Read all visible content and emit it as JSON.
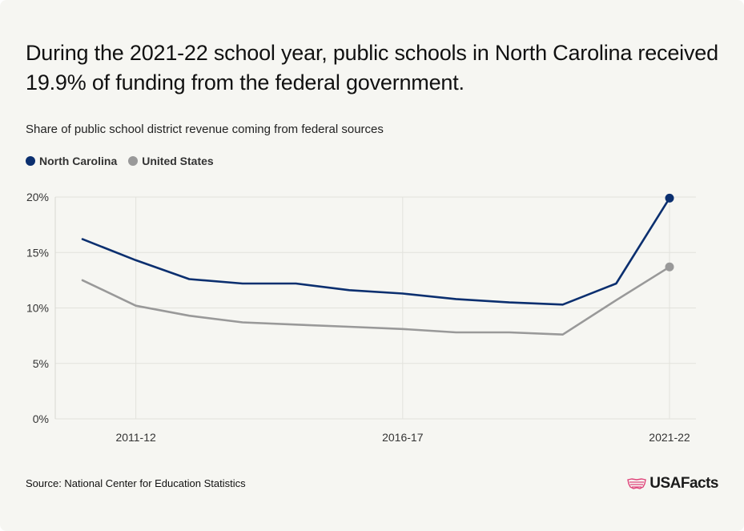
{
  "title": "During the 2021-22 school year, public schools in North Carolina received 19.9% of funding from the federal government.",
  "subtitle": "Share of public school district revenue coming from federal sources",
  "legend": [
    {
      "name": "North Carolina",
      "color": "#0b2f6f"
    },
    {
      "name": "United States",
      "color": "#999999"
    }
  ],
  "source": "Source: National Center for Education Statistics",
  "brand": {
    "name": "USAFacts",
    "icon": "us-flag-map-icon",
    "color": "#e0457b"
  },
  "chart_data": {
    "type": "line",
    "x": [
      "2010-11",
      "2011-12",
      "2012-13",
      "2013-14",
      "2014-15",
      "2015-16",
      "2016-17",
      "2017-18",
      "2018-19",
      "2019-20",
      "2020-21",
      "2021-22"
    ],
    "x_tick_labels": [
      "2011-12",
      "2016-17",
      "2021-22"
    ],
    "y_tick_labels": [
      "0%",
      "5%",
      "10%",
      "15%",
      "20%"
    ],
    "y_ticks": [
      0,
      5,
      10,
      15,
      20
    ],
    "ylim": [
      0,
      20
    ],
    "grid": true,
    "series": [
      {
        "name": "North Carolina",
        "color": "#0b2f6f",
        "values": [
          16.2,
          14.3,
          12.6,
          12.2,
          12.2,
          11.6,
          11.3,
          10.8,
          10.5,
          10.3,
          12.2,
          19.9
        ],
        "end_marker": true
      },
      {
        "name": "United States",
        "color": "#999999",
        "values": [
          12.5,
          10.2,
          9.3,
          8.7,
          8.5,
          8.3,
          8.1,
          7.8,
          7.8,
          7.6,
          10.7,
          13.7
        ],
        "end_marker": true
      }
    ]
  }
}
